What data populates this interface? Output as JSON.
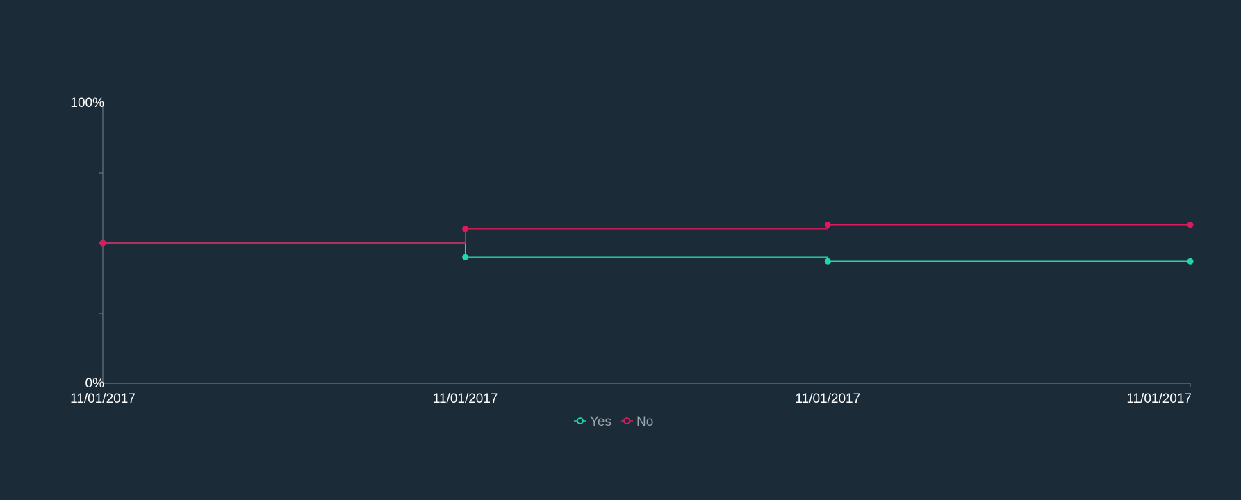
{
  "chart_data": {
    "type": "line",
    "step": true,
    "y_unit": "%",
    "ylim": [
      0,
      100
    ],
    "yticks": [
      "0%",
      "100%"
    ],
    "y_minor_ticks": [
      25,
      50,
      75
    ],
    "categories": [
      "11/01/2017",
      "11/01/2017",
      "11/01/2017",
      "11/01/2017"
    ],
    "series": [
      {
        "name": "Yes",
        "color": "#1fd8a6",
        "values": [
          50,
          45,
          43.5,
          43.5
        ]
      },
      {
        "name": "No",
        "color": "#e0195c",
        "values": [
          50,
          55,
          56.5,
          56.5
        ]
      }
    ],
    "legend": {
      "position": "bottom-center"
    },
    "grid": false,
    "axis_color": "#6b7680",
    "background": "#1b2b38"
  }
}
